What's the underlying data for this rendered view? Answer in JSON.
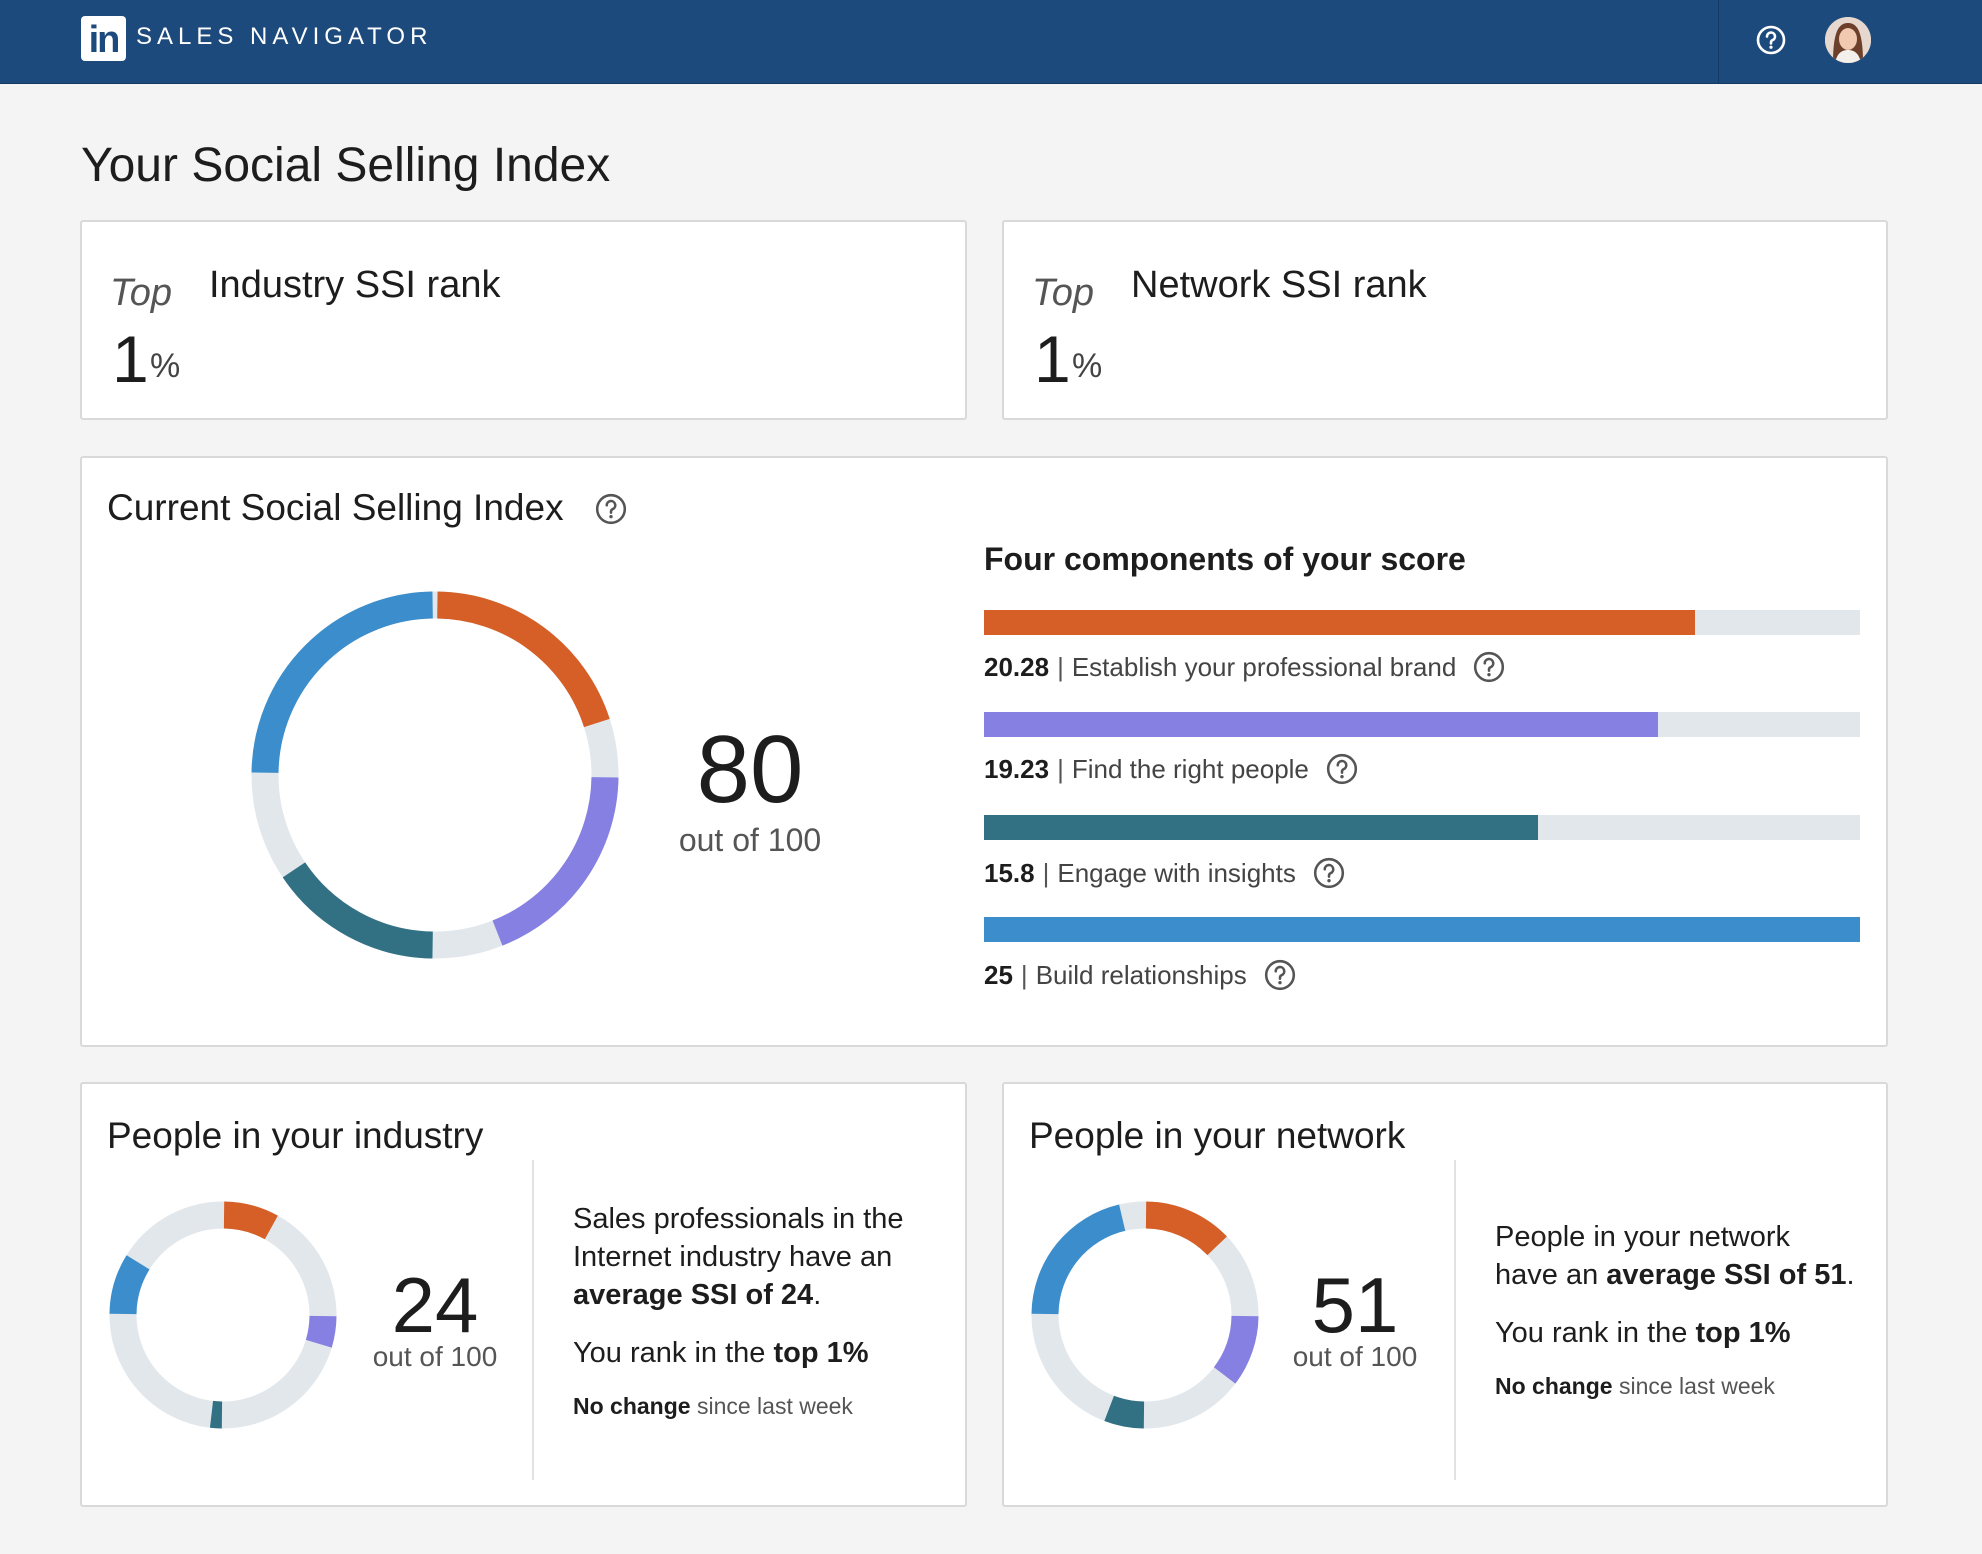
{
  "header": {
    "logo": "in",
    "brand": "SALES NAVIGATOR",
    "help_icon": "question-circle-icon",
    "avatar": "user-avatar"
  },
  "page": {
    "title": "Your Social Selling Index"
  },
  "industry_rank": {
    "top_label": "Top",
    "title": "Industry SSI rank",
    "value": "1",
    "unit": "%"
  },
  "network_rank": {
    "top_label": "Top",
    "title": "Network SSI rank",
    "value": "1",
    "unit": "%"
  },
  "current_ssi": {
    "title": "Current Social Selling Index",
    "score": "80",
    "out_of": "out of 100",
    "components_heading": "Four components of your score",
    "components": [
      {
        "value": "20.28",
        "label": "Establish your professional brand",
        "fraction": 0.8112,
        "color": "#d55f27"
      },
      {
        "value": "19.23",
        "label": "Find the right people",
        "fraction": 0.7692,
        "color": "#8580e2"
      },
      {
        "value": "15.8",
        "label": "Engage with insights",
        "fraction": 0.632,
        "color": "#327184"
      },
      {
        "value": "25",
        "label": "Build relationships",
        "fraction": 1.0,
        "color": "#3b8dcb"
      }
    ],
    "separator": "|"
  },
  "industry": {
    "title": "People in your industry",
    "score": "24",
    "out_of": "out of 100",
    "components": [
      8.2,
      4.8,
      2.0,
      9.0
    ],
    "desc_line1": "Sales professionals in the",
    "desc_line2": "Internet industry have an",
    "desc_avg": "average SSI of 24",
    "desc_period": ".",
    "rank_prefix": "You rank in the",
    "rank_value": "top 1%",
    "nochange_bold": "No change",
    "nochange_rest": "since last week"
  },
  "network": {
    "title": "People in your network",
    "score": "51",
    "out_of": "out of 100",
    "components": [
      13.0,
      10.5,
      6.0,
      21.5
    ],
    "desc_line1": "People in your network",
    "desc_line2_prefix": "have an",
    "desc_avg": "average SSI of 51",
    "desc_period": ".",
    "rank_prefix": "You rank in the",
    "rank_value": "top 1%",
    "nochange_bold": "No change",
    "nochange_rest": "since last week"
  },
  "colors": {
    "header_bg": "#1d4a7c",
    "track": "#e2e7ec",
    "brand": "#d55f27",
    "people": "#8580e2",
    "insights": "#327184",
    "relationships": "#3b8dcb"
  }
}
